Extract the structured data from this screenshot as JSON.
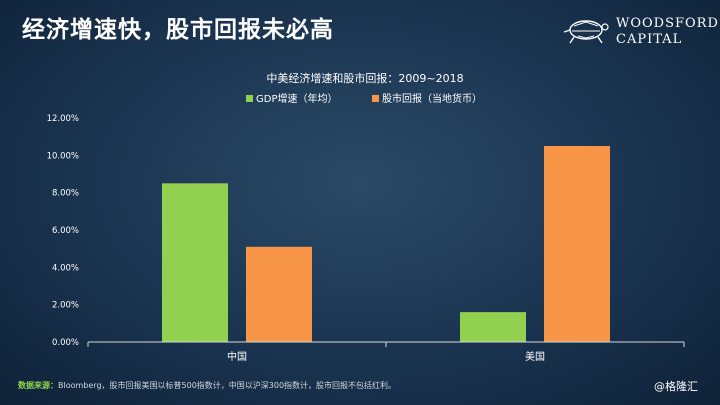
{
  "header": {
    "title": "经济增速快，股市回报未必高",
    "logo_line1": "WOODSFORD",
    "logo_line2": "CAPITAL"
  },
  "footer": {
    "source_lead": "数据来源：",
    "source_text": "Bloomberg，股市回报美国以标普500指数计，中国以沪深300指数计，股市回报不包括红利。",
    "watermark": "@格隆汇"
  },
  "colors": {
    "gdp": "#92d050",
    "stock": "#f79646",
    "axis": "#d9d9d9",
    "gridline": "#5a7590"
  },
  "chart_data": {
    "type": "bar",
    "title": "中美经济增速和股市回报：2009~2018",
    "categories": [
      "中国",
      "美国"
    ],
    "series": [
      {
        "name": "GDP增速（年均）",
        "values": [
          0.085,
          0.016
        ]
      },
      {
        "name": "股市回报（当地货币）",
        "values": [
          0.051,
          0.105
        ]
      }
    ],
    "ylim": [
      0,
      0.12
    ],
    "yticks": [
      0,
      0.02,
      0.04,
      0.06,
      0.08,
      0.1,
      0.12
    ],
    "ytick_labels": [
      "0.00%",
      "2.00%",
      "4.00%",
      "6.00%",
      "8.00%",
      "10.00%",
      "12.00%"
    ],
    "legend_position": "top-left",
    "grid": false,
    "xlabel": "",
    "ylabel": ""
  }
}
